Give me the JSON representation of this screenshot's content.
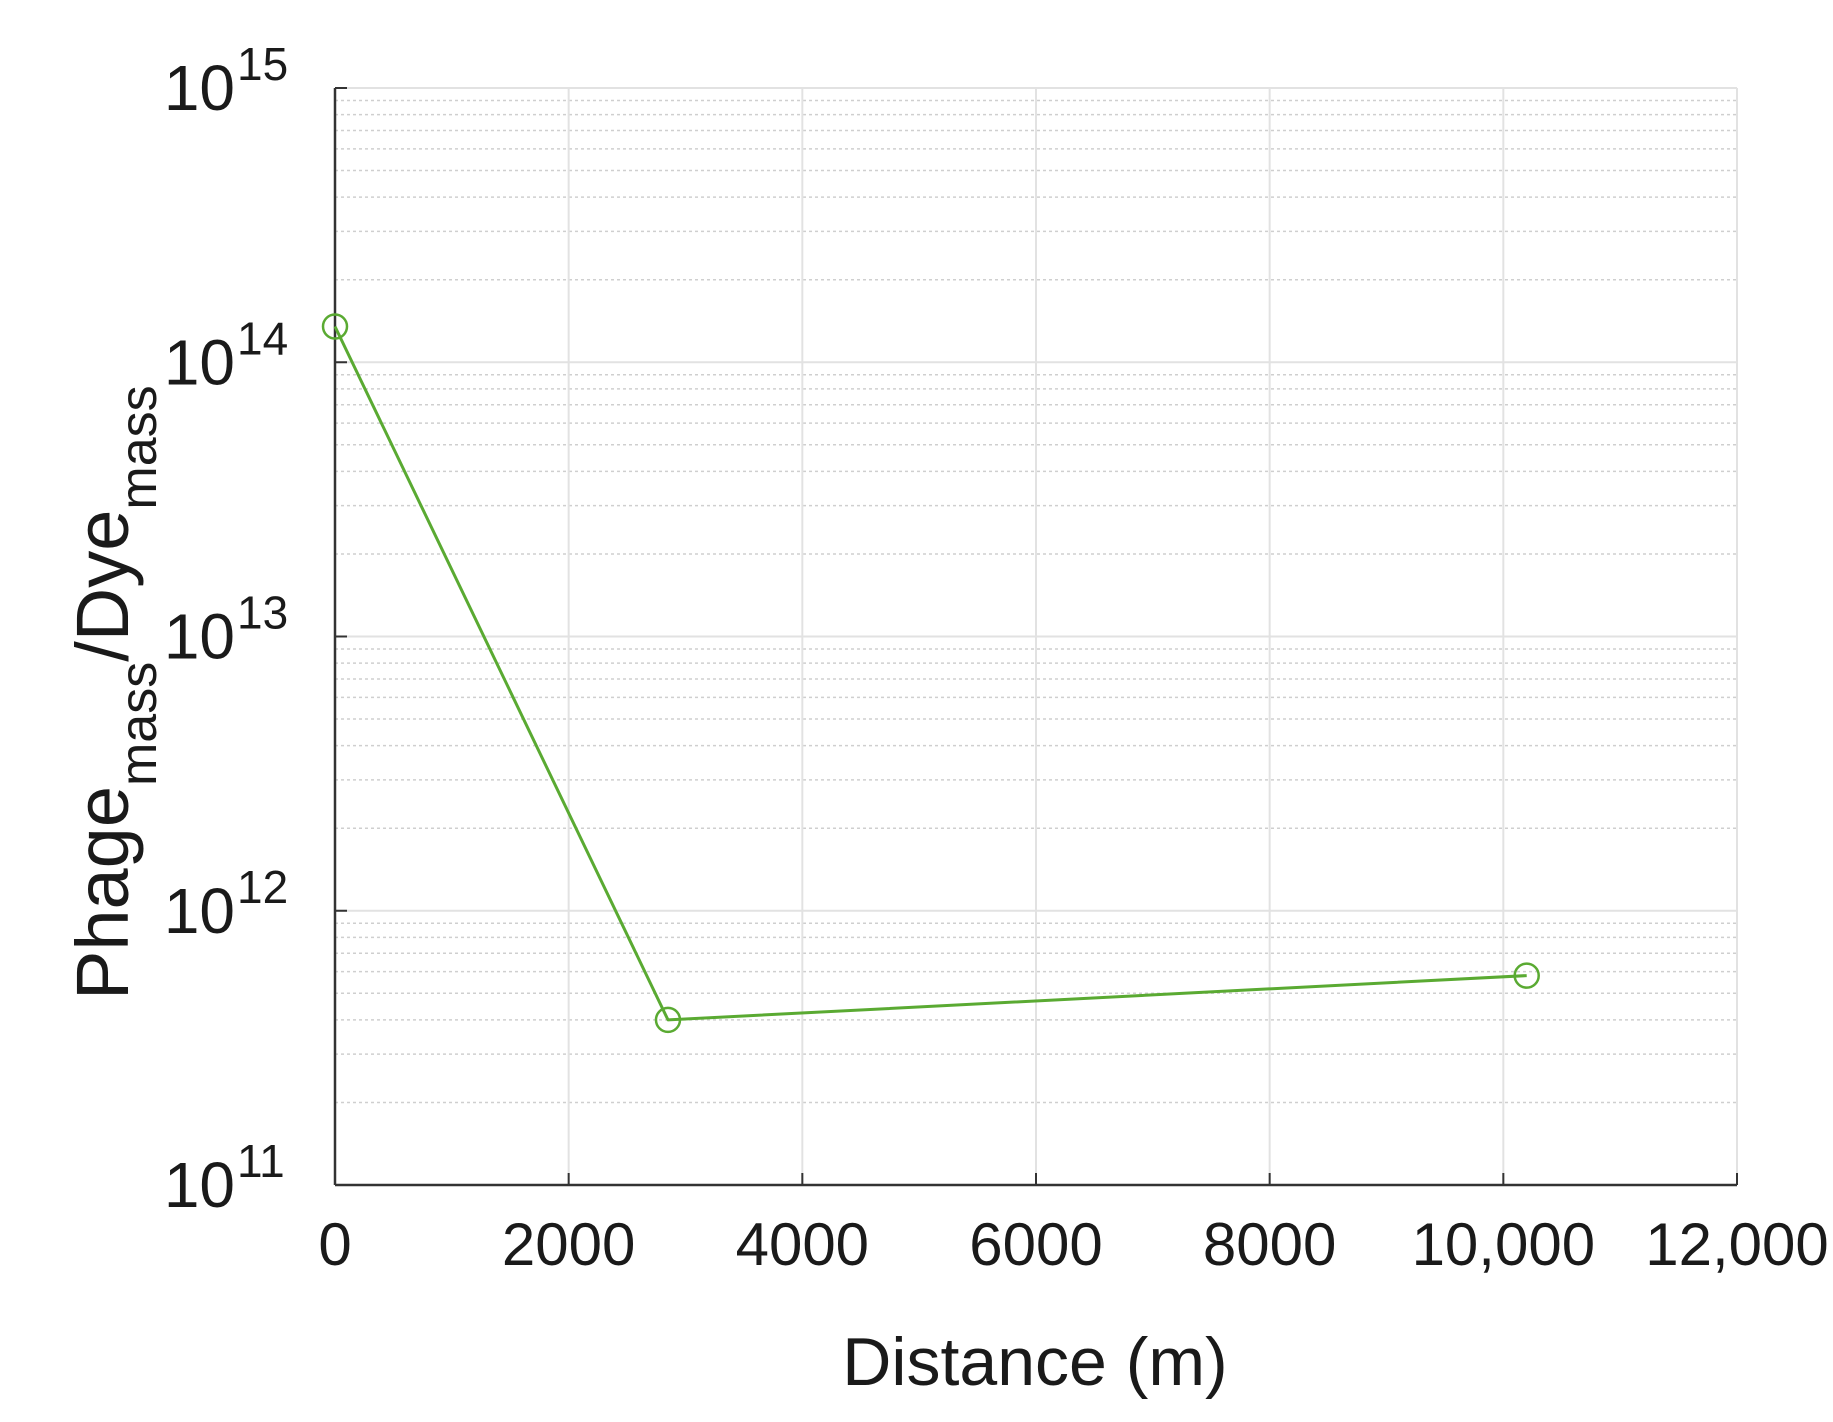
{
  "chart_data": {
    "type": "line",
    "title": "",
    "xlabel": "Distance (m)",
    "ylabel": {
      "main1": "Phage",
      "sub1": "mass",
      "main2": "/Dye",
      "sub2": "mass"
    },
    "xlim": [
      0,
      12000
    ],
    "ylim": [
      100000000000.0,
      1000000000000000.0
    ],
    "yscale": "log",
    "grid": true,
    "x_ticks": [
      {
        "value": 0,
        "label": "0"
      },
      {
        "value": 2000,
        "label": "2000"
      },
      {
        "value": 4000,
        "label": "4000"
      },
      {
        "value": 6000,
        "label": "6000"
      },
      {
        "value": 8000,
        "label": "8000"
      },
      {
        "value": 10000,
        "label": "10,000"
      },
      {
        "value": 12000,
        "label": "12,000"
      }
    ],
    "y_ticks": [
      {
        "value": 100000000000.0,
        "base": "10",
        "exp": "11"
      },
      {
        "value": 1000000000000.0,
        "base": "10",
        "exp": "12"
      },
      {
        "value": 10000000000000.0,
        "base": "10",
        "exp": "13"
      },
      {
        "value": 100000000000000.0,
        "base": "10",
        "exp": "14"
      },
      {
        "value": 1000000000000000.0,
        "base": "10",
        "exp": "15"
      }
    ],
    "series": [
      {
        "color": "#5aaa32",
        "marker": "open-circle",
        "points": [
          {
            "x": 0,
            "y": 135000000000000.0
          },
          {
            "x": 2850,
            "y": 400000000000.0
          },
          {
            "x": 10200,
            "y": 580000000000.0
          }
        ]
      }
    ]
  }
}
